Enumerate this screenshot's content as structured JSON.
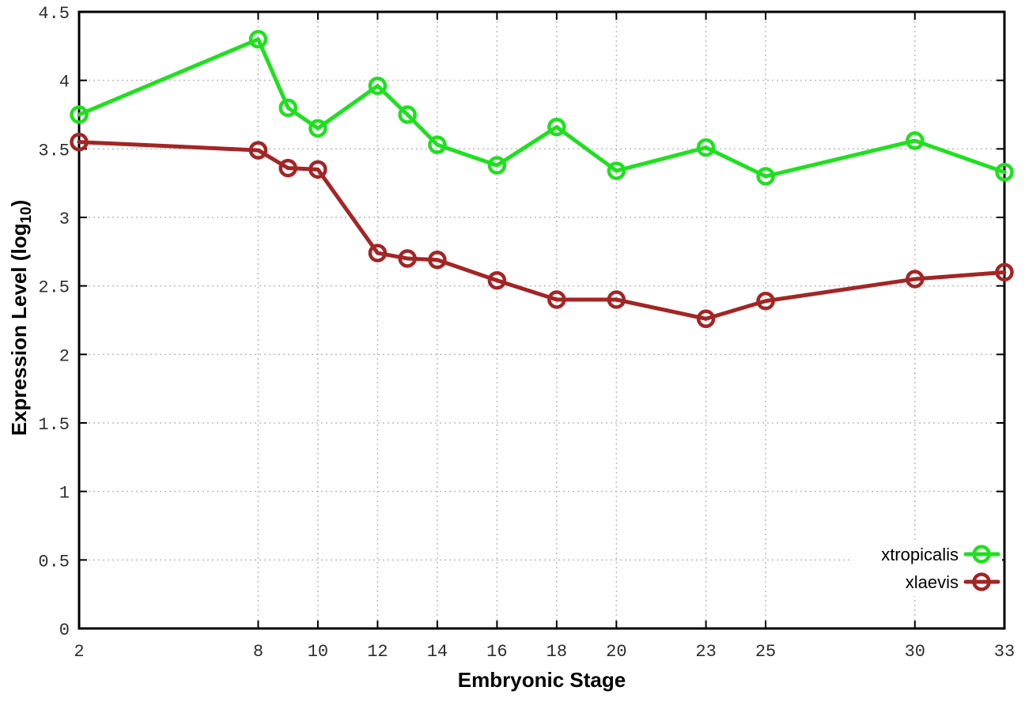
{
  "chart_data": {
    "type": "line",
    "title": "",
    "xlabel": "Embryonic Stage",
    "ylabel": {
      "prefix": "Expression Level (log",
      "subscript": "10",
      "suffix": ")"
    },
    "x": [
      2,
      8,
      9,
      10,
      12,
      13,
      14,
      16,
      18,
      20,
      23,
      25,
      30,
      33
    ],
    "xticks": [
      2,
      8,
      10,
      12,
      14,
      16,
      18,
      20,
      23,
      25,
      30,
      33
    ],
    "xtick_labels": [
      "2",
      "8",
      "10",
      "12",
      "14",
      "16",
      "18",
      "20",
      "23",
      "25",
      "30",
      "33"
    ],
    "yticks": [
      0,
      0.5,
      1,
      1.5,
      2,
      2.5,
      3,
      3.5,
      4,
      4.5
    ],
    "ytick_labels": [
      "0",
      "0.5",
      "1",
      "1.5",
      "2",
      "2.5",
      "3",
      "3.5",
      "4",
      "4.5"
    ],
    "xlim": [
      2,
      33
    ],
    "ylim": [
      0,
      4.5
    ],
    "grid": true,
    "legend_position": "inside-bottom-right",
    "series": [
      {
        "name": "xtropicalis",
        "color": "#1fe01f",
        "values": [
          3.75,
          4.3,
          3.8,
          3.65,
          3.96,
          3.75,
          3.53,
          3.38,
          3.66,
          3.34,
          3.51,
          3.3,
          3.56,
          3.33
        ]
      },
      {
        "name": "xlaevis",
        "color": "#a32525",
        "values": [
          3.55,
          3.49,
          3.36,
          3.35,
          2.74,
          2.7,
          2.69,
          2.54,
          2.4,
          2.4,
          2.26,
          2.39,
          2.55,
          2.6
        ]
      }
    ]
  },
  "colors": {
    "background": "#ffffff",
    "border": "#000000",
    "grid": "#bbbbbb",
    "tick_label": "#2e2e2e"
  }
}
